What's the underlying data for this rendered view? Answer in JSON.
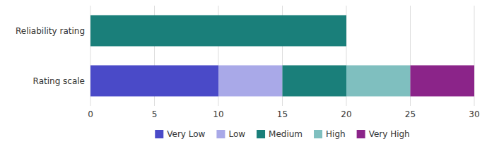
{
  "chart_data": {
    "type": "bar",
    "orientation": "horizontal",
    "stacked": true,
    "categories": [
      "Reliability rating",
      "Rating scale"
    ],
    "series": [
      {
        "name": "Very Low",
        "color": "#4a4ac8",
        "values": [
          null,
          10
        ]
      },
      {
        "name": "Low",
        "color": "#a9a9e8",
        "values": [
          null,
          5
        ]
      },
      {
        "name": "Medium",
        "color": "#1a7f7a",
        "values": [
          20,
          5
        ]
      },
      {
        "name": "High",
        "color": "#7fbfbf",
        "values": [
          null,
          5
        ]
      },
      {
        "name": "Very High",
        "color": "#8b2489",
        "values": [
          null,
          5
        ]
      }
    ],
    "xlim": [
      0,
      30
    ],
    "xticks": [
      0,
      5,
      10,
      15,
      20,
      25,
      30
    ],
    "grid": true,
    "legend": "bottom"
  }
}
